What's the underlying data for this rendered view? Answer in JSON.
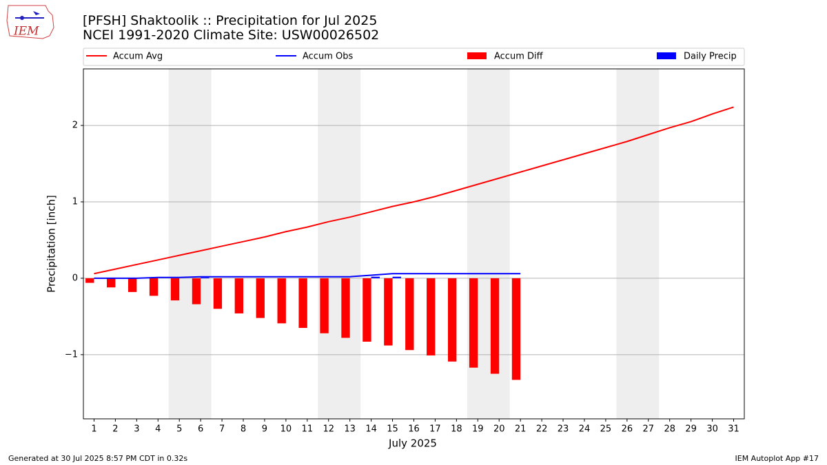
{
  "chart_data": {
    "type": "combo",
    "title": "[PFSH] Shaktoolik :: Precipitation for Jul 2025",
    "subtitle": "NCEI 1991-2020 Climate Site: USW00026502",
    "x_label": "July 2025",
    "y_label": "Precipitation [inch]",
    "footer_left": "Generated at 30 Jul 2025 8:57 PM CDT in 0.32s",
    "footer_right": "IEM Autoplot App #17",
    "logo_text": "IEM",
    "x": [
      1,
      2,
      3,
      4,
      5,
      6,
      7,
      8,
      9,
      10,
      11,
      12,
      13,
      14,
      15,
      16,
      17,
      18,
      19,
      20,
      21,
      22,
      23,
      24,
      25,
      26,
      27,
      28,
      29,
      30,
      31
    ],
    "xlim": [
      0.5,
      31.5
    ],
    "xticks": [
      1,
      2,
      3,
      4,
      5,
      6,
      7,
      8,
      9,
      10,
      11,
      12,
      13,
      14,
      15,
      16,
      17,
      18,
      19,
      20,
      21,
      22,
      23,
      24,
      25,
      26,
      27,
      28,
      29,
      30,
      31
    ],
    "ylim": [
      -1.84,
      2.74
    ],
    "yticks": [
      {
        "value": -1,
        "label": "−1"
      },
      0,
      1,
      2
    ],
    "grid": true,
    "weekend_spans": [
      [
        4.5,
        6.5
      ],
      [
        11.5,
        13.5
      ],
      [
        18.5,
        20.5
      ],
      [
        25.5,
        27.5
      ]
    ],
    "series": [
      {
        "name": "Accum Avg",
        "type": "line",
        "color": "#ff0000",
        "values": [
          0.06,
          0.12,
          0.18,
          0.24,
          0.3,
          0.36,
          0.42,
          0.48,
          0.54,
          0.61,
          0.67,
          0.74,
          0.8,
          0.87,
          0.94,
          1.0,
          1.07,
          1.15,
          1.23,
          1.31,
          1.39,
          1.47,
          1.55,
          1.63,
          1.71,
          1.79,
          1.88,
          1.97,
          2.05,
          2.15,
          2.24
        ]
      },
      {
        "name": "Accum Obs",
        "type": "line",
        "color": "#0000ff",
        "values": [
          0,
          0,
          0,
          0.01,
          0.01,
          0.02,
          0.02,
          0.02,
          0.02,
          0.02,
          0.02,
          0.02,
          0.02,
          0.04,
          0.06,
          0.06,
          0.06,
          0.06,
          0.06,
          0.06,
          0.06,
          null,
          null,
          null,
          null,
          null,
          null,
          null,
          null,
          null,
          null
        ]
      },
      {
        "name": "Accum Diff",
        "type": "bar",
        "color": "#ff0000",
        "values": [
          -0.06,
          -0.12,
          -0.18,
          -0.23,
          -0.29,
          -0.34,
          -0.4,
          -0.46,
          -0.52,
          -0.59,
          -0.65,
          -0.72,
          -0.78,
          -0.83,
          -0.88,
          -0.94,
          -1.01,
          -1.09,
          -1.17,
          -1.25,
          -1.33,
          null,
          null,
          null,
          null,
          null,
          null,
          null,
          null,
          null,
          null
        ]
      },
      {
        "name": "Daily Precip",
        "type": "bar",
        "color": "#0000ff",
        "values": [
          0,
          0,
          0,
          0,
          0,
          0.01,
          0,
          0,
          0,
          0,
          0,
          0,
          0,
          0.02,
          0.02,
          0,
          0,
          0,
          0,
          0,
          0,
          null,
          null,
          null,
          null,
          null,
          null,
          null,
          null,
          null,
          null
        ]
      }
    ]
  }
}
